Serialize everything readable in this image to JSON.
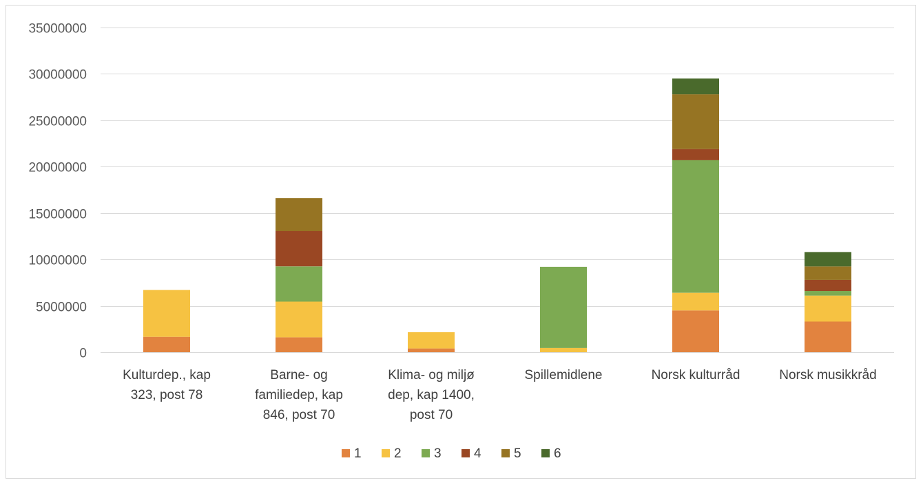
{
  "chart_data": {
    "type": "bar",
    "stacked": true,
    "title": "",
    "xlabel": "",
    "ylabel": "",
    "ylim": [
      0,
      35000000
    ],
    "y_ticks": [
      0,
      5000000,
      10000000,
      15000000,
      20000000,
      25000000,
      30000000,
      35000000
    ],
    "y_tick_labels": [
      "0",
      "5000000",
      "10000000",
      "15000000",
      "20000000",
      "25000000",
      "30000000",
      "35000000"
    ],
    "grid": true,
    "legend_position": "bottom",
    "categories": [
      [
        "Kulturdep., kap",
        "323, post 78"
      ],
      [
        "Barne- og",
        "familiedep, kap",
        "846, post 70"
      ],
      [
        "Klima- og miljø",
        "dep, kap 1400,",
        "post 70"
      ],
      [
        "Spillemidlene"
      ],
      [
        "Norsk kulturråd"
      ],
      [
        "Norsk musikkråd"
      ]
    ],
    "series": [
      {
        "name": "1",
        "color": "#E2833F",
        "values": [
          1650000,
          1600000,
          400000,
          0,
          4500000,
          3300000
        ]
      },
      {
        "name": "2",
        "color": "#F6C242",
        "values": [
          5050000,
          3850000,
          1750000,
          450000,
          1900000,
          2800000
        ]
      },
      {
        "name": "3",
        "color": "#7DAA52",
        "values": [
          0,
          3800000,
          0,
          8750000,
          14300000,
          500000
        ]
      },
      {
        "name": "4",
        "color": "#9A4723",
        "values": [
          0,
          3800000,
          0,
          0,
          1200000,
          1200000
        ]
      },
      {
        "name": "5",
        "color": "#967423",
        "values": [
          0,
          3550000,
          0,
          0,
          5900000,
          1450000
        ]
      },
      {
        "name": "6",
        "color": "#4A6A2C",
        "values": [
          0,
          0,
          0,
          0,
          1700000,
          1550000
        ]
      }
    ]
  }
}
